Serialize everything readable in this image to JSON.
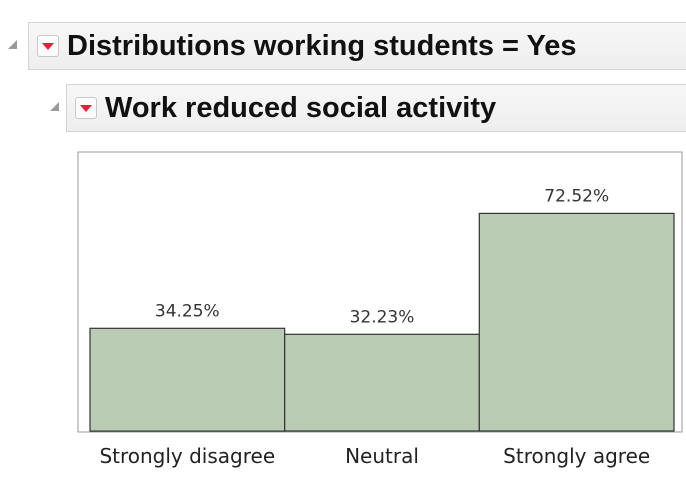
{
  "outline": {
    "title": "Distributions working students = Yes",
    "subtitle": "Work reduced social activity"
  },
  "colors": {
    "bar_fill": "#b9cbb3",
    "bar_stroke": "#333333",
    "hotspot_arrow": "#e0203a"
  },
  "icons": {
    "disclosure": "disclosure-triangle-icon",
    "hotspot": "red-hotspot-menu-icon"
  },
  "chart_data": {
    "type": "bar",
    "categories": [
      "Strongly disagree",
      "Neutral",
      "Strongly agree"
    ],
    "values": [
      34.25,
      32.23,
      72.52
    ],
    "data_labels": [
      "34.25%",
      "32.23%",
      "72.52%"
    ],
    "title": "",
    "xlabel": "",
    "ylabel": "",
    "ylim": [
      0,
      80
    ],
    "grid": false,
    "legend": "none"
  }
}
